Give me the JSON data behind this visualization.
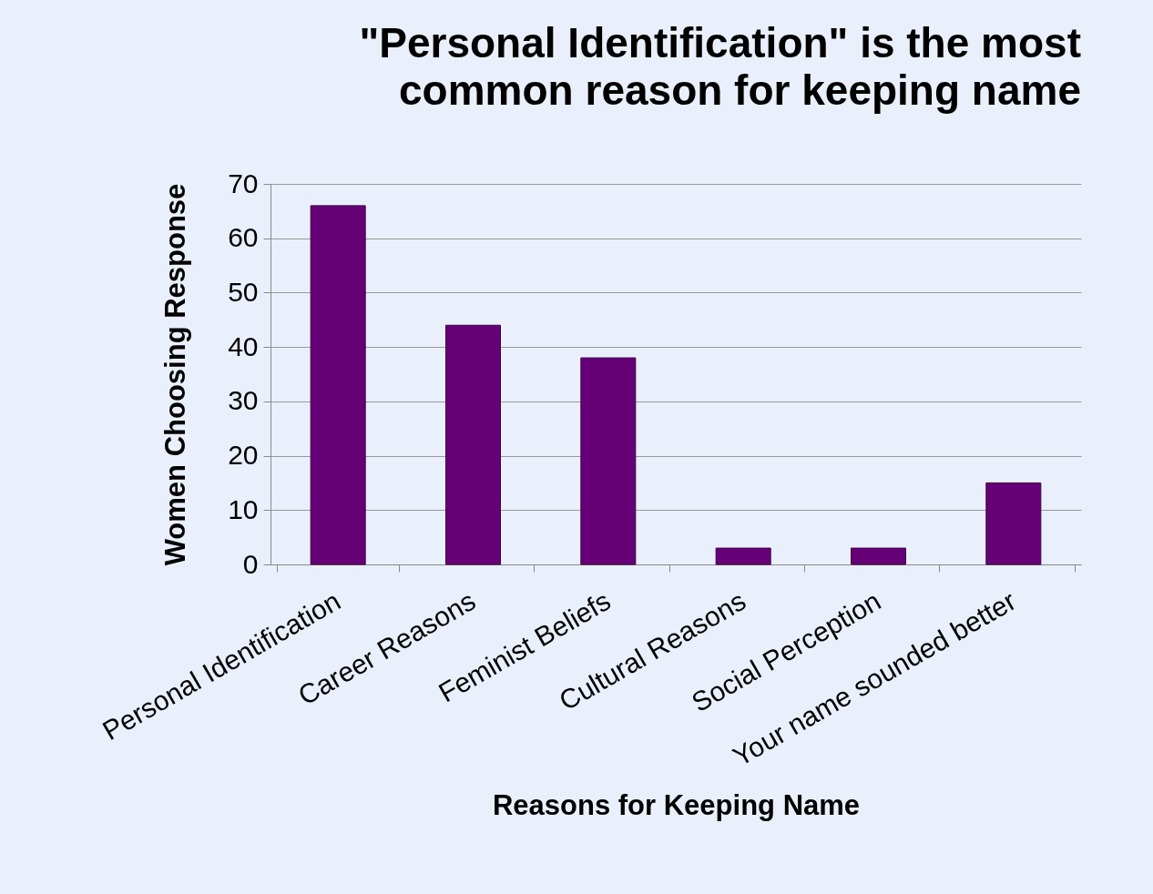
{
  "chart_data": {
    "type": "bar",
    "title": [
      "\"Personal Identification\" is the most",
      "common reason for keeping name"
    ],
    "xlabel": "Reasons for Keeping Name",
    "ylabel": "Women Choosing Response",
    "categories": [
      "Personal Identification",
      "Career Reasons",
      "Feminist Beliefs",
      "Cultural Reasons",
      "Social Perception",
      "Your name sounded better"
    ],
    "values": [
      66,
      44,
      38,
      3,
      3,
      15
    ],
    "color": "#660077",
    "ylim": [
      0,
      70
    ],
    "yticks": [
      0,
      10,
      20,
      30,
      40,
      50,
      60,
      70
    ],
    "grid": "y"
  }
}
